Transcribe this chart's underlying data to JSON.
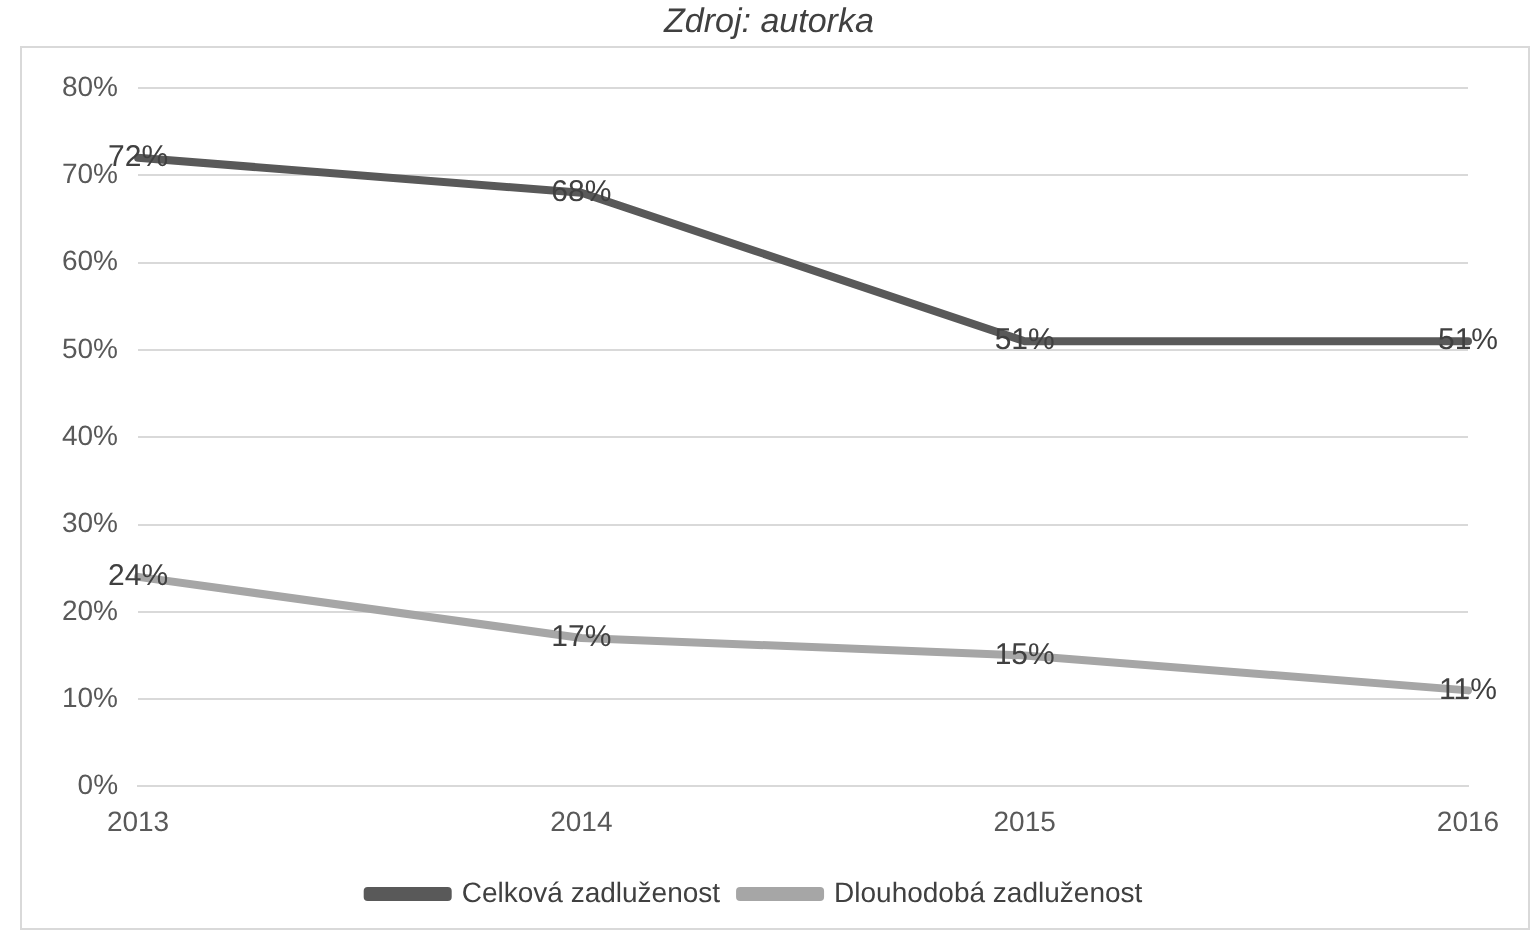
{
  "chart_data": {
    "type": "line",
    "categories": [
      "2013",
      "2014",
      "2015",
      "2016"
    ],
    "series": [
      {
        "name": "Celková zadluženost",
        "color": "#595959",
        "values": [
          72,
          68,
          51,
          51
        ],
        "value_labels": [
          "72%",
          "68%",
          "51%",
          "51%"
        ]
      },
      {
        "name": "Dlouhodobá zadluženost",
        "color": "#a6a6a6",
        "values": [
          24,
          17,
          15,
          11
        ],
        "value_labels": [
          "24%",
          "17%",
          "15%",
          "11%"
        ]
      }
    ],
    "ylim": [
      0,
      80
    ],
    "yticks": [
      {
        "value": 0,
        "label": "0%"
      },
      {
        "value": 10,
        "label": "10%"
      },
      {
        "value": 20,
        "label": "20%"
      },
      {
        "value": 30,
        "label": "30%"
      },
      {
        "value": 40,
        "label": "40%"
      },
      {
        "value": 50,
        "label": "50%"
      },
      {
        "value": 60,
        "label": "60%"
      },
      {
        "value": 70,
        "label": "70%"
      },
      {
        "value": 80,
        "label": "80%"
      }
    ],
    "grid": "y",
    "legend": "bottom",
    "marker": "none",
    "line_style": "solid",
    "annotations": [
      "Zdroj: autorka"
    ]
  }
}
